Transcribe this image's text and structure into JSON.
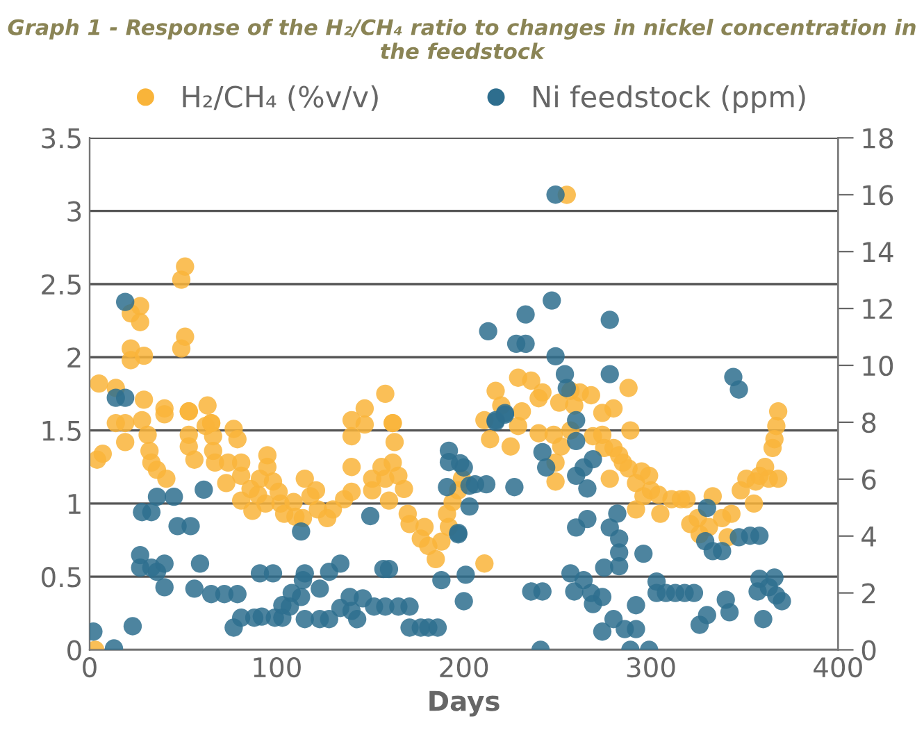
{
  "chart_data": {
    "type": "scatter",
    "title": "Graph 1 - Response of the H₂/CH₄ ratio to changes in nickel concentration in the feedstock",
    "xlabel": "Days",
    "xlim": [
      0,
      400
    ],
    "xticks": [
      0,
      100,
      200,
      300,
      400
    ],
    "ylim": [
      0,
      3.5
    ],
    "yticks": [
      0,
      0.5,
      1,
      1.5,
      2,
      2.5,
      3,
      3.5
    ],
    "y2lim": [
      0,
      18
    ],
    "y2ticks": [
      0,
      2,
      4,
      6,
      8,
      10,
      12,
      14,
      16,
      18
    ],
    "grid": "y",
    "legend": "top",
    "marker": "circle",
    "series": [
      {
        "name": "H₂/CH₄ (%v/v)",
        "color": "#f9b43a",
        "x": [
          3,
          4,
          5,
          7,
          14,
          14,
          19,
          19,
          22,
          22,
          22,
          27,
          27,
          28,
          29,
          29,
          31,
          32,
          33,
          36,
          40,
          40,
          41,
          49,
          49,
          51,
          51,
          53,
          53,
          53,
          53,
          56,
          62,
          63,
          65,
          65,
          66,
          66,
          67,
          73,
          74,
          77,
          79,
          81,
          81,
          81,
          86,
          87,
          90,
          91,
          94,
          95,
          95,
          98,
          101,
          102,
          104,
          109,
          110,
          114,
          115,
          118,
          121,
          122,
          127,
          130,
          136,
          140,
          140,
          140,
          140,
          147,
          147,
          151,
          151,
          156,
          158,
          158,
          160,
          162,
          162,
          162,
          163,
          165,
          168,
          170,
          171,
          177,
          179,
          181,
          185,
          188,
          191,
          192,
          194,
          197,
          199,
          211,
          211,
          214,
          217,
          220,
          225,
          229,
          229,
          231,
          236,
          240,
          240,
          242,
          248,
          249,
          249,
          251,
          252,
          255,
          257,
          257,
          259,
          262,
          268,
          269,
          274,
          274,
          275,
          278,
          280,
          280,
          283,
          285,
          288,
          288,
          289,
          292,
          292,
          295,
          296,
          299,
          300,
          304,
          305,
          311,
          316,
          319,
          321,
          325,
          326,
          331,
          333,
          338,
          341,
          343,
          348,
          351,
          355,
          356,
          358,
          361,
          363,
          365,
          366,
          367,
          368,
          368
        ],
        "values": [
          0,
          1.3,
          1.82,
          1.34,
          1.55,
          1.79,
          1.55,
          1.42,
          2.06,
          1.98,
          2.3,
          2.35,
          2.24,
          1.57,
          2.01,
          1.71,
          1.47,
          1.36,
          1.28,
          1.23,
          1.65,
          1.61,
          1.17,
          2.06,
          2.53,
          2.14,
          2.62,
          1.63,
          1.47,
          1.39,
          1.63,
          1.3,
          1.53,
          1.67,
          1.55,
          1.55,
          1.46,
          1.36,
          1.28,
          1.14,
          1.28,
          1.51,
          1.44,
          1.28,
          1.19,
          1.02,
          1.1,
          0.95,
          1.06,
          1.17,
          1.0,
          1.33,
          1.25,
          1.15,
          1.08,
          1.0,
          0.93,
          1.01,
          0.91,
          0.9,
          1.17,
          1.05,
          1.09,
          0.96,
          0.9,
          0.96,
          1.03,
          1.08,
          1.25,
          1.46,
          1.57,
          1.54,
          1.65,
          1.17,
          1.09,
          1.25,
          1.17,
          1.75,
          1.02,
          1.28,
          1.55,
          1.55,
          1.42,
          1.19,
          1.1,
          0.93,
          0.86,
          0.76,
          0.84,
          0.71,
          0.62,
          0.74,
          0.93,
          0.84,
          1.01,
          1.09,
          1.17,
          1.57,
          0.59,
          1.44,
          1.77,
          1.67,
          1.39,
          1.53,
          1.86,
          1.63,
          1.84,
          1.48,
          1.72,
          1.76,
          1.47,
          1.15,
          1.28,
          1.69,
          1.39,
          3.11,
          1.5,
          1.77,
          1.67,
          1.76,
          1.74,
          1.46,
          1.47,
          1.62,
          1.38,
          1.17,
          1.38,
          1.65,
          1.33,
          1.28,
          1.24,
          1.79,
          1.5,
          0.96,
          1.14,
          1.22,
          1.05,
          1.19,
          1.09,
          1.06,
          0.93,
          1.03,
          1.03,
          1.03,
          0.86,
          0.9,
          0.79,
          0.84,
          1.05,
          0.9,
          0.77,
          0.93,
          1.09,
          1.17,
          1.0,
          1.15,
          1.19,
          1.25,
          1.17,
          1.38,
          1.44,
          1.53,
          1.17,
          1.63
        ]
      },
      {
        "name": "Ni feedstock (ppm)",
        "color": "#2e6e8e",
        "axis": "y2",
        "x": [
          2,
          13,
          14,
          19,
          19,
          23,
          27,
          27,
          28,
          33,
          33,
          36,
          36,
          40,
          40,
          45,
          47,
          54,
          56,
          59,
          61,
          65,
          72,
          77,
          79,
          81,
          88,
          91,
          92,
          98,
          99,
          103,
          103,
          107,
          108,
          113,
          113,
          114,
          115,
          115,
          123,
          123,
          128,
          128,
          134,
          134,
          139,
          140,
          143,
          146,
          150,
          152,
          157,
          158,
          160,
          165,
          171,
          171,
          177,
          181,
          186,
          188,
          191,
          192,
          192,
          197,
          197,
          198,
          200,
          200,
          201,
          203,
          203,
          206,
          212,
          213,
          217,
          217,
          222,
          222,
          227,
          228,
          233,
          233,
          236,
          241,
          242,
          242,
          244,
          247,
          249,
          249,
          254,
          255,
          257,
          259,
          260,
          260,
          260,
          260,
          264,
          264,
          266,
          266,
          268,
          269,
          269,
          274,
          274,
          275,
          278,
          278,
          278,
          280,
          282,
          283,
          283,
          283,
          286,
          289,
          292,
          292,
          296,
          299,
          303,
          303,
          308,
          313,
          318,
          323,
          326,
          329,
          330,
          330,
          333,
          338,
          340,
          342,
          344,
          347,
          347,
          353,
          357,
          358,
          358,
          360,
          363,
          366,
          367,
          370
        ],
        "values": [
          0.64,
          0.05,
          8.86,
          12.23,
          8.86,
          0.83,
          3.33,
          2.89,
          4.84,
          4.84,
          2.89,
          2.74,
          5.38,
          3.03,
          2.2,
          5.38,
          4.35,
          4.35,
          2.15,
          3.03,
          5.63,
          1.96,
          1.96,
          0.78,
          1.96,
          1.13,
          1.13,
          2.69,
          1.17,
          2.69,
          1.13,
          1.13,
          1.57,
          1.52,
          2.0,
          1.86,
          4.16,
          2.45,
          2.69,
          1.08,
          2.15,
          1.08,
          1.08,
          2.74,
          3.03,
          1.47,
          1.86,
          1.37,
          1.08,
          1.81,
          4.7,
          1.52,
          2.84,
          1.52,
          2.84,
          1.52,
          1.52,
          0.78,
          0.78,
          0.78,
          0.78,
          2.45,
          5.72,
          7.0,
          6.6,
          4.06,
          4.11,
          6.56,
          6.41,
          1.71,
          2.64,
          5.04,
          5.77,
          5.82,
          5.82,
          11.2,
          8.02,
          8.07,
          8.32,
          8.27,
          5.72,
          10.76,
          10.76,
          11.79,
          2.05,
          0,
          2.05,
          6.95,
          6.41,
          12.28,
          16.0,
          10.32,
          9.69,
          9.2,
          2.69,
          2.05,
          4.3,
          6.12,
          7.34,
          8.07,
          2.45,
          6.41,
          4.6,
          5.67,
          2.0,
          6.7,
          1.61,
          1.86,
          0.64,
          2.89,
          4.3,
          11.6,
          9.69,
          1.08,
          4.79,
          3.91,
          3.42,
          2.94,
          0.73,
          0,
          0.73,
          1.57,
          3.38,
          0,
          2.4,
          2.0,
          2.0,
          2.0,
          2.0,
          2.0,
          0.88,
          3.82,
          1.22,
          4.99,
          3.47,
          3.47,
          1.76,
          1.32,
          9.59,
          3.96,
          9.15,
          4.01,
          2.05,
          4.01,
          2.5,
          1.08,
          2.2,
          2.54,
          1.91,
          1.71
        ]
      }
    ]
  }
}
